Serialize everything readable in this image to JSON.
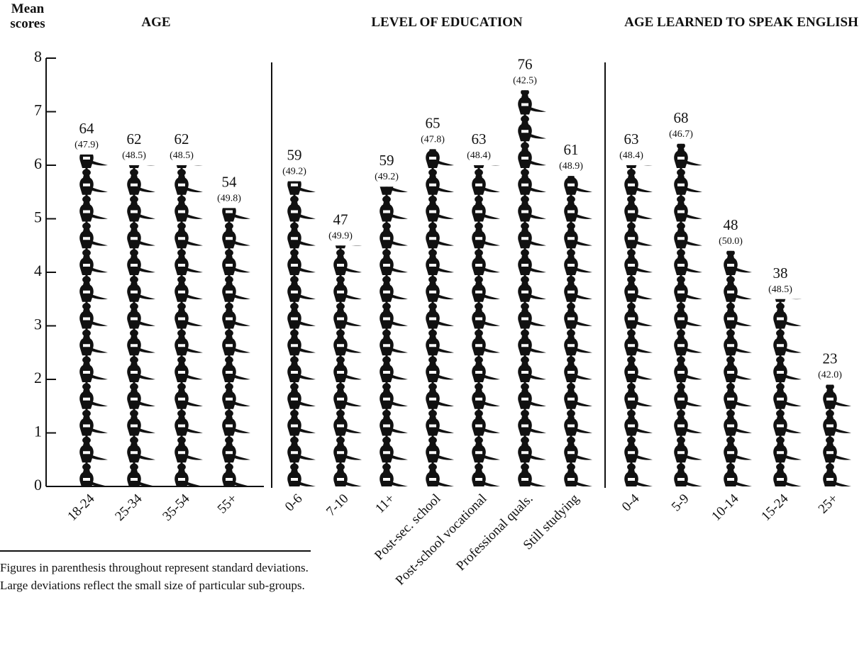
{
  "chart_data": {
    "type": "pictograph",
    "y_label": "Mean scores",
    "ylim": [
      0,
      8
    ],
    "yticks": [
      0,
      1,
      2,
      3,
      4,
      5,
      6,
      7,
      8
    ],
    "color": "#111111",
    "footnote": "Figures in parenthesis throughout represent standard deviations. Large deviations reflect the small size of particular sub-groups.",
    "groups": [
      {
        "title": "AGE",
        "categories": [
          "18-24",
          "25-34",
          "35-54",
          "55+"
        ],
        "values": [
          6.2,
          6.0,
          6.0,
          5.2
        ],
        "scores": [
          64,
          62,
          62,
          54
        ],
        "sd_labels": [
          "(47.9)",
          "(48.5)",
          "(48.5)",
          "(49.8)"
        ]
      },
      {
        "title": "LEVEL OF EDUCATION",
        "categories": [
          "0-6",
          "7-10",
          "11+",
          "Post-sec. school",
          "Post-school vocational",
          "Professional quals.",
          "Still studying"
        ],
        "values": [
          5.7,
          4.5,
          5.6,
          6.3,
          6.0,
          7.4,
          5.8
        ],
        "scores": [
          59,
          47,
          59,
          65,
          63,
          76,
          61
        ],
        "sd_labels": [
          "(49.2)",
          "(49.9)",
          "(49.2)",
          "(47.8)",
          "(48.4)",
          "(42.5)",
          "(48.9)"
        ]
      },
      {
        "title": "AGE LEARNED TO SPEAK ENGLISH",
        "categories": [
          "0-4",
          "5-9",
          "10-14",
          "15-24",
          "25+"
        ],
        "values": [
          6.0,
          6.4,
          4.4,
          3.5,
          1.9
        ],
        "scores": [
          63,
          68,
          48,
          38,
          23
        ],
        "sd_labels": [
          "(48.4)",
          "(46.7)",
          "(50.0)",
          "(48.5)",
          "(42.0)"
        ]
      }
    ]
  }
}
